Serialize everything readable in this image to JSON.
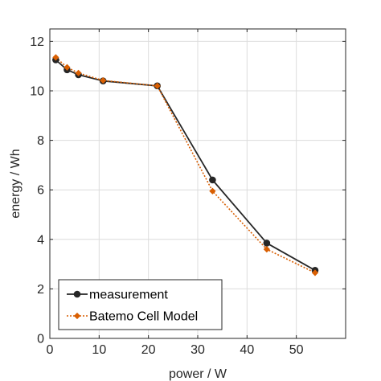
{
  "chart_data": {
    "type": "line",
    "xlabel": "power / W",
    "ylabel": "energy / Wh",
    "xlim": [
      0,
      60
    ],
    "ylim": [
      0,
      12.5
    ],
    "xticks": [
      0,
      10,
      20,
      30,
      40,
      50
    ],
    "yticks": [
      0,
      2,
      4,
      6,
      8,
      10,
      12
    ],
    "grid": true,
    "legend_position": "bottom-left",
    "series": [
      {
        "name": "measurement",
        "color": "#262626",
        "line_style": "solid",
        "marker": "circle",
        "x": [
          1.2,
          3.5,
          5.8,
          10.8,
          21.8,
          33.0,
          44.0,
          53.8
        ],
        "y": [
          11.25,
          10.85,
          10.65,
          10.4,
          10.2,
          6.4,
          3.85,
          2.75
        ]
      },
      {
        "name": "Batemo Cell Model",
        "color": "#d95f02",
        "line_style": "dotted",
        "marker": "diamond",
        "x": [
          1.2,
          3.5,
          5.8,
          10.8,
          21.8,
          33.0,
          44.0,
          53.8
        ],
        "y": [
          11.35,
          10.95,
          10.72,
          10.42,
          10.2,
          5.95,
          3.6,
          2.65
        ]
      }
    ]
  }
}
